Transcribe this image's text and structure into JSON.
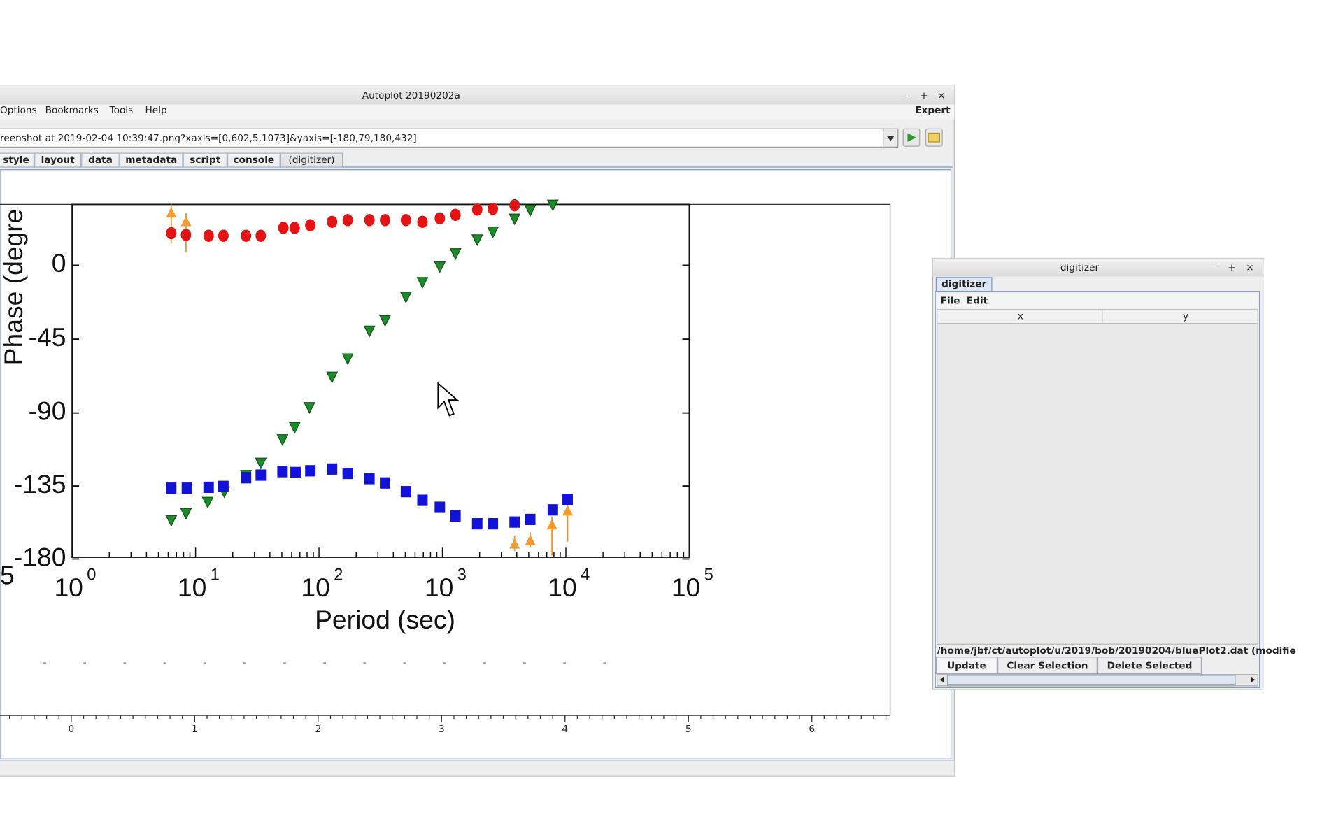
{
  "main_window": {
    "title": "Autoplot 20190202a",
    "menus": [
      "Options",
      "Bookmarks",
      "Tools",
      "Help"
    ],
    "expert": "Expert",
    "address": "reenshot at 2019-02-04 10:39:47.png?xaxis=[0,602,5,1073]&yaxis=[-180,79,180,432]",
    "tabs": [
      "style",
      "layout",
      "data",
      "metadata",
      "script",
      "console",
      "(digitizer)"
    ]
  },
  "embedded_plot": {
    "y_label": "Phase (degre",
    "y_ticks": [
      "0",
      "-45",
      "-90",
      "-135",
      "-180"
    ],
    "x_edge_label": "5",
    "x_tick_base": "10",
    "x_tick_exponents": [
      "0",
      "1",
      "2",
      "3",
      "4",
      "5"
    ],
    "x_label": "Period (sec)"
  },
  "canvas_axis": {
    "ticks": [
      "0",
      "1",
      "2",
      "3",
      "4",
      "5",
      "6"
    ]
  },
  "digitizer": {
    "title": "digitizer",
    "tab": "digitizer",
    "menus": [
      "File",
      "Edit"
    ],
    "columns": [
      "x",
      "y"
    ],
    "file": "/home/jbf/ct/autoplot/u/2019/bob/20190204/bluePlot2.dat (modifie",
    "buttons": [
      "Update",
      "Clear Selection",
      "Delete Selected"
    ]
  }
}
